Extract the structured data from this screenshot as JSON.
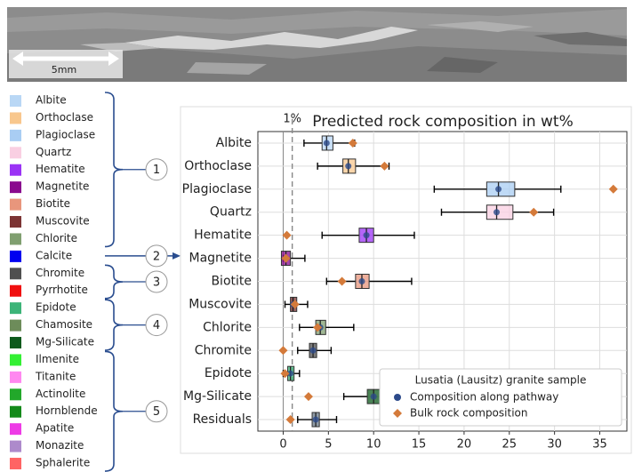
{
  "image": {
    "scale_bar": "5mm"
  },
  "mineral_groups": [
    {
      "label": "1",
      "minerals": [
        {
          "name": "Albite",
          "color": "#b9d7f5"
        },
        {
          "name": "Orthoclase",
          "color": "#f8c78d"
        },
        {
          "name": "Plagioclase",
          "color": "#a9cdf3"
        },
        {
          "name": "Quartz",
          "color": "#f9cfe2"
        },
        {
          "name": "Hematite",
          "color": "#9b33f5"
        },
        {
          "name": "Magnetite",
          "color": "#8a0a8e"
        },
        {
          "name": "Biotite",
          "color": "#e8967c"
        },
        {
          "name": "Muscovite",
          "color": "#7c3434"
        },
        {
          "name": "Chlorite",
          "color": "#809f70"
        }
      ]
    },
    {
      "label": "2",
      "arrow": true,
      "minerals": [
        {
          "name": "Calcite",
          "color": "#0000f0"
        }
      ]
    },
    {
      "label": "3",
      "minerals": [
        {
          "name": "Chromite",
          "color": "#505050"
        },
        {
          "name": "Pyrrhotite",
          "color": "#f01010"
        }
      ]
    },
    {
      "label": "4",
      "minerals": [
        {
          "name": "Epidote",
          "color": "#3cb478"
        },
        {
          "name": "Chamosite",
          "color": "#6d8c5a"
        },
        {
          "name": "Mg-Silicate",
          "color": "#0d5a1c"
        }
      ]
    },
    {
      "label": "5",
      "minerals": [
        {
          "name": "Ilmenite",
          "color": "#33f033"
        },
        {
          "name": "Titanite",
          "color": "#ff88f0"
        },
        {
          "name": "Actinolite",
          "color": "#22a82a"
        },
        {
          "name": "Hornblende",
          "color": "#148a1a"
        },
        {
          "name": "Apatite",
          "color": "#ee3be6"
        },
        {
          "name": "Monazite",
          "color": "#ad8acb"
        },
        {
          "name": "Sphalerite",
          "color": "#ff6464"
        }
      ]
    }
  ],
  "chart_data": {
    "type": "boxplot",
    "title": "Predicted rock composition in wt%",
    "categories": [
      "Albite",
      "Orthoclase",
      "Plagioclase",
      "Quartz",
      "Hematite",
      "Magnetite",
      "Biotite",
      "Muscovite",
      "Chlorite",
      "Chromite",
      "Epidote",
      "Mg-Silicate",
      "Residuals"
    ],
    "boxes": {
      "whisker_low": [
        2.3,
        3.8,
        16.7,
        17.5,
        4.3,
        0.0,
        4.8,
        0.2,
        1.8,
        1.6,
        0.0,
        6.7,
        1.6
      ],
      "q1": [
        4.3,
        6.6,
        22.5,
        22.5,
        8.4,
        -0.2,
        8.0,
        0.8,
        3.6,
        2.9,
        0.5,
        9.3,
        3.2
      ],
      "median": [
        4.8,
        7.2,
        23.8,
        23.6,
        9.2,
        0.3,
        8.7,
        1.1,
        4.1,
        3.3,
        0.8,
        10.0,
        3.6
      ],
      "q3": [
        5.5,
        8.0,
        25.6,
        25.4,
        10.0,
        0.8,
        9.5,
        1.5,
        4.7,
        3.7,
        1.2,
        10.7,
        4.0
      ],
      "whisker_high": [
        7.9,
        11.7,
        30.7,
        29.9,
        14.5,
        2.4,
        14.2,
        2.7,
        7.8,
        5.3,
        1.8,
        13.5,
        5.9
      ],
      "colors": [
        "#b9d7f5",
        "#f8c78d",
        "#a9cdf3",
        "#f9cfe2",
        "#9b33f5",
        "#8a0a8e",
        "#e8967c",
        "#7c3434",
        "#809f70",
        "#505050",
        "#3cb478",
        "#0d5a1c",
        "#6a7a88"
      ]
    },
    "series": [
      {
        "name": "Composition along pathway",
        "color": "#2c4a8a",
        "marker": "circle",
        "values": [
          4.8,
          7.2,
          23.8,
          23.6,
          9.2,
          0.3,
          8.7,
          1.1,
          4.1,
          3.3,
          0.8,
          10.0,
          3.6
        ]
      },
      {
        "name": "Bulk rock composition",
        "color": "#d47a3a",
        "marker": "diamond",
        "values": [
          7.7,
          11.2,
          36.5,
          27.7,
          0.4,
          0.3,
          6.5,
          1.3,
          3.8,
          0.0,
          0.2,
          2.8,
          0.8
        ]
      }
    ],
    "xlim": [
      -2.8,
      38
    ],
    "xticks": [
      0,
      5,
      10,
      15,
      20,
      25,
      30,
      35
    ],
    "reference_line": {
      "value": 1,
      "label": "1%"
    },
    "grid": true,
    "legend_title": "Lusatia (Lausitz) granite sample",
    "legend": "lower right"
  }
}
